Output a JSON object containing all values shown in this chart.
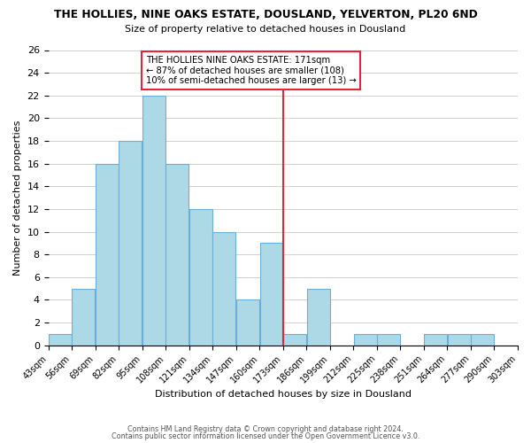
{
  "title": "THE HOLLIES, NINE OAKS ESTATE, DOUSLAND, YELVERTON, PL20 6ND",
  "subtitle": "Size of property relative to detached houses in Dousland",
  "xlabel": "Distribution of detached houses by size in Dousland",
  "ylabel": "Number of detached properties",
  "bar_edges": [
    43,
    56,
    69,
    82,
    95,
    108,
    121,
    134,
    147,
    160,
    173,
    186,
    199,
    212,
    225,
    238,
    251,
    264,
    277,
    290,
    303
  ],
  "bar_heights": [
    1,
    5,
    16,
    18,
    22,
    16,
    12,
    10,
    4,
    9,
    1,
    5,
    0,
    1,
    1,
    0,
    1,
    1,
    1,
    0
  ],
  "bar_color": "#add8e6",
  "bar_edgecolor": "#6baed6",
  "vline_x": 173,
  "vline_color": "#e32636",
  "annotation_title": "THE HOLLIES NINE OAKS ESTATE: 171sqm",
  "annotation_line2": "← 87% of detached houses are smaller (108)",
  "annotation_line3": "10% of semi-detached houses are larger (13) →",
  "annotation_box_edgecolor": "#e32636",
  "ylim": [
    0,
    26
  ],
  "yticks": [
    0,
    2,
    4,
    6,
    8,
    10,
    12,
    14,
    16,
    18,
    20,
    22,
    24,
    26
  ],
  "tick_labels": [
    "43sqm",
    "56sqm",
    "69sqm",
    "82sqm",
    "95sqm",
    "108sqm",
    "121sqm",
    "134sqm",
    "147sqm",
    "160sqm",
    "173sqm",
    "186sqm",
    "199sqm",
    "212sqm",
    "225sqm",
    "238sqm",
    "251sqm",
    "264sqm",
    "277sqm",
    "290sqm",
    "303sqm"
  ],
  "footer_line1": "Contains HM Land Registry data © Crown copyright and database right 2024.",
  "footer_line2": "Contains public sector information licensed under the Open Government Licence v3.0.",
  "background_color": "#ffffff",
  "grid_color": "#d0d0d0"
}
